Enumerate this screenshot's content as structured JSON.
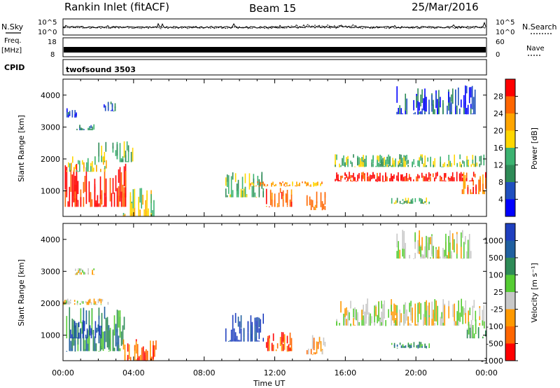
{
  "header": {
    "station": "Rankin Inlet (fitACF)",
    "beam": "Beam 15",
    "date": "25/Mar/2016"
  },
  "strip_labels": {
    "nsky": "N.Sky",
    "nsearch": "N.Search",
    "freq_line1": "Freq.",
    "freq_line2": "[MHz]",
    "nave": "Nave",
    "cpid": "CPID",
    "cpid_value": "twofsound 3503"
  },
  "strip_ticks": {
    "noise_left": [
      "10^5",
      "10^0"
    ],
    "noise_right": [
      "10^5",
      "10^0"
    ],
    "freq_left": [
      "18",
      "8"
    ],
    "nave_right": [
      "60",
      "0"
    ]
  },
  "colors": {
    "power_scale": [
      "#0000ff",
      "#1f4fbf",
      "#2e8b57",
      "#3cb371",
      "#ffd700",
      "#ffa500",
      "#ff6600",
      "#ff0000"
    ],
    "velocity_scale": [
      "#1f3fbf",
      "#2060a0",
      "#2e8b57",
      "#55cc33",
      "#c8c8c8",
      "#ff9900",
      "#ff6600",
      "#ff0000"
    ]
  },
  "chart_data": [
    {
      "type": "heatmap",
      "name": "power",
      "ylabel": "Slant Range [km]",
      "xlabel": "Time UT",
      "ylim": [
        200,
        4500
      ],
      "xlim_hours": [
        0,
        24
      ],
      "y_ticks": [
        "1000",
        "2000",
        "3000",
        "4000"
      ],
      "colorbar": {
        "label": "Power [dB]",
        "ticks": [
          "4",
          "8",
          "12",
          "16",
          "20",
          "24",
          "28"
        ]
      },
      "regions": [
        {
          "t0": 0.1,
          "t1": 3.6,
          "r0": 500,
          "r1": 1900,
          "level": 7
        },
        {
          "t0": 0.2,
          "t1": 2.5,
          "r0": 1600,
          "r1": 2100,
          "level": 4
        },
        {
          "t0": 2.0,
          "t1": 4.0,
          "r0": 1900,
          "r1": 2600,
          "level": 3
        },
        {
          "t0": 0.6,
          "t1": 1.8,
          "r0": 2900,
          "r1": 3100,
          "level": 2
        },
        {
          "t0": 0.2,
          "t1": 0.8,
          "r0": 3300,
          "r1": 3600,
          "level": 1
        },
        {
          "t0": 2.3,
          "t1": 3.0,
          "r0": 3500,
          "r1": 3800,
          "level": 1
        },
        {
          "t0": 3.4,
          "t1": 5.2,
          "r0": 200,
          "r1": 1100,
          "level": 4
        },
        {
          "t0": 9.2,
          "t1": 11.4,
          "r0": 800,
          "r1": 1600,
          "level": 3
        },
        {
          "t0": 11.5,
          "t1": 13.0,
          "r0": 500,
          "r1": 1100,
          "level": 6
        },
        {
          "t0": 13.8,
          "t1": 14.9,
          "r0": 400,
          "r1": 1000,
          "level": 6
        },
        {
          "t0": 10.6,
          "t1": 14.8,
          "r0": 1150,
          "r1": 1300,
          "level": 5
        },
        {
          "t0": 15.4,
          "t1": 23.4,
          "r0": 1300,
          "r1": 1600,
          "level": 7
        },
        {
          "t0": 15.4,
          "t1": 23.9,
          "r0": 1750,
          "r1": 2150,
          "level": 3
        },
        {
          "t0": 22.6,
          "t1": 24.0,
          "r0": 900,
          "r1": 1600,
          "level": 6
        },
        {
          "t0": 18.6,
          "t1": 20.8,
          "r0": 600,
          "r1": 800,
          "level": 3
        },
        {
          "t0": 18.9,
          "t1": 23.4,
          "r0": 3400,
          "r1": 4300,
          "level": 1
        }
      ]
    },
    {
      "type": "heatmap",
      "name": "velocity",
      "ylabel": "Slant Range [km]",
      "xlabel": "Time UT",
      "ylim": [
        200,
        4500
      ],
      "xlim_hours": [
        0,
        24
      ],
      "y_ticks": [
        "1000",
        "2000",
        "3000",
        "4000"
      ],
      "colorbar": {
        "label": "Velocity [m s⁻¹]",
        "ticks": [
          "1000",
          "500",
          "100",
          "25",
          "-25",
          "-100",
          "-500",
          "-1000"
        ]
      },
      "regions": [
        {
          "t0": 0.1,
          "t1": 3.6,
          "r0": 500,
          "r1": 1900,
          "level": 2
        },
        {
          "t0": 0.4,
          "t1": 2.2,
          "r0": 900,
          "r1": 1500,
          "level": 0
        },
        {
          "t0": 0.0,
          "t1": 2.6,
          "r0": 1950,
          "r1": 2150,
          "level": 4
        },
        {
          "t0": 0.6,
          "t1": 1.8,
          "r0": 2900,
          "r1": 3100,
          "level": 4
        },
        {
          "t0": 3.4,
          "t1": 5.4,
          "r0": 200,
          "r1": 900,
          "level": 6
        },
        {
          "t0": 9.2,
          "t1": 11.4,
          "r0": 800,
          "r1": 1700,
          "level": 0
        },
        {
          "t0": 11.5,
          "t1": 13.0,
          "r0": 500,
          "r1": 1100,
          "level": 6
        },
        {
          "t0": 13.8,
          "t1": 14.9,
          "r0": 400,
          "r1": 1000,
          "level": 5
        },
        {
          "t0": 15.4,
          "t1": 23.9,
          "r0": 1300,
          "r1": 2150,
          "level": 4
        },
        {
          "t0": 22.8,
          "t1": 24.0,
          "r0": 900,
          "r1": 1500,
          "level": 3
        },
        {
          "t0": 18.6,
          "t1": 20.8,
          "r0": 600,
          "r1": 800,
          "level": 2
        },
        {
          "t0": 18.9,
          "t1": 23.4,
          "r0": 3400,
          "r1": 4300,
          "level": 4
        }
      ]
    }
  ],
  "time_axis": {
    "label": "Time UT",
    "ticks": [
      "00:00",
      "04:00",
      "08:00",
      "12:00",
      "16:00",
      "20:00",
      "00:00"
    ]
  }
}
